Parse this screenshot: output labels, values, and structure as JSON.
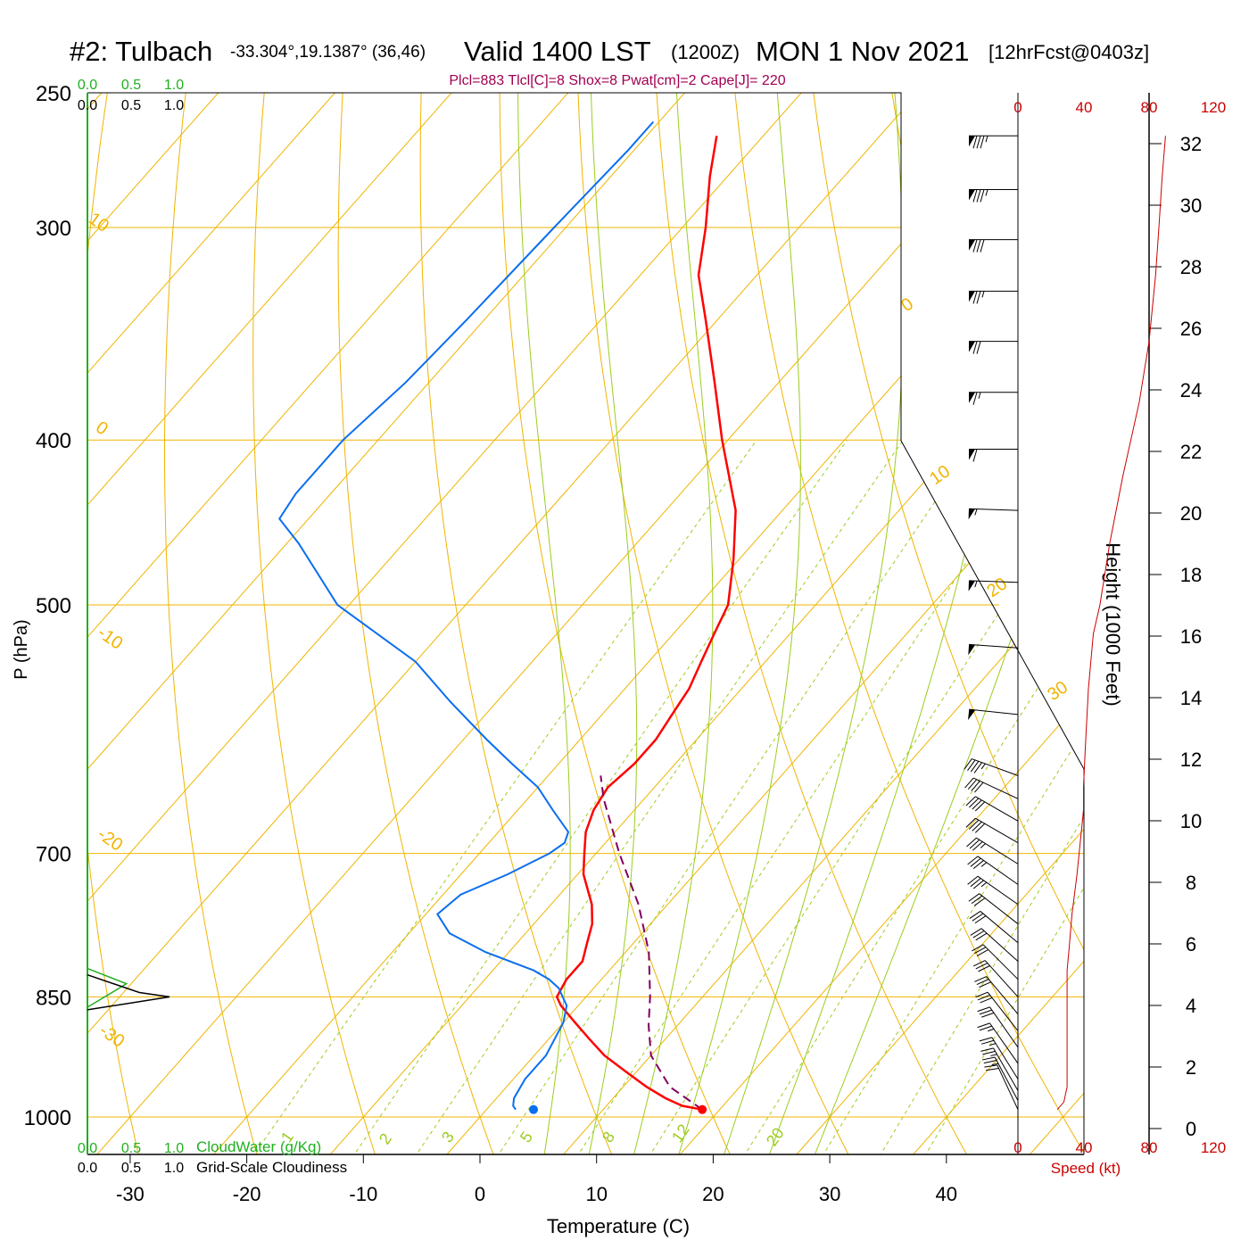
{
  "header": {
    "station": "#2: Tulbach",
    "coords": "-33.304°,19.1387° (36,46)",
    "valid": "Valid 1400 LST",
    "utc": "(1200Z)",
    "date": "MON 1 Nov 2021",
    "forecast": "[12hrFcst@0403z]",
    "params": "Plcl=883 Tlcl[C]=8 Shox=8 Pwat[cm]=2 Cape[J]= 220"
  },
  "colors": {
    "temperature": "#ff0000",
    "dewpoint": "#0a6ef0",
    "parcel": "#800060",
    "isotherm": "#f0b400",
    "dry_adiabat": "#f0b400",
    "moist_adiabat": "#9ccc1e",
    "mixing_ratio": "#9ccc1e",
    "cloud_water": "#20b020",
    "wind_speed": "#cc0000"
  },
  "chart_data": {
    "type": "line",
    "title": "Skew-T log-P sounding",
    "xlabel": "Temperature (C)",
    "ylabel": "P (hPa)",
    "y2label": "Height (1000 Feet)",
    "x_ticks": [
      "-30",
      "-20",
      "-10",
      "0",
      "10",
      "20",
      "30",
      "40"
    ],
    "pressure_ticks": [
      "250",
      "300",
      "400",
      "500",
      "700",
      "850",
      "1000"
    ],
    "height_ticks": [
      "0",
      "2",
      "4",
      "6",
      "8",
      "10",
      "12",
      "14",
      "16",
      "18",
      "20",
      "22",
      "24",
      "26",
      "28",
      "30",
      "32"
    ],
    "dry_adiabat_labels": [
      "10",
      "0",
      "-10",
      "-20",
      "-30",
      "0",
      "10",
      "20",
      "30"
    ],
    "mixing_ratio_labels": [
      "1",
      "2",
      "3",
      "5",
      "8",
      "12",
      "20"
    ],
    "cloud_scale": {
      "green_ticks": [
        "0.0",
        "0.5",
        "1.0"
      ],
      "black_ticks": [
        "0.0",
        "0.5",
        "1.0"
      ],
      "green_label": "CloudWater (g/Kg)",
      "black_label": "Grid-Scale Cloudiness"
    },
    "speed_scale": {
      "ticks": [
        "0",
        "40",
        "80",
        "120"
      ],
      "label": "Speed (kt)"
    },
    "temperature": {
      "p": [
        990,
        985,
        975,
        960,
        940,
        920,
        900,
        880,
        860,
        850,
        830,
        810,
        790,
        770,
        750,
        720,
        700,
        680,
        660,
        640,
        620,
        600,
        580,
        560,
        540,
        520,
        500,
        470,
        440,
        400,
        370,
        340,
        320,
        300,
        280,
        265
      ],
      "t": [
        18.5,
        16.5,
        14.5,
        12.0,
        9.0,
        6.0,
        3.5,
        1.0,
        -1.5,
        -2.5,
        -3.0,
        -3.0,
        -4.0,
        -5.0,
        -6.5,
        -9.5,
        -11.0,
        -12.5,
        -13.5,
        -14.0,
        -13.5,
        -13.5,
        -14.0,
        -14.5,
        -15.5,
        -16.5,
        -17.5,
        -20.5,
        -24.0,
        -30.5,
        -35.5,
        -41.0,
        -45.0,
        -48.0,
        -51.5,
        -54.0
      ]
    },
    "dewpoint": {
      "p": [
        990,
        985,
        975,
        950,
        920,
        900,
        880,
        860,
        850,
        840,
        830,
        820,
        800,
        780,
        760,
        740,
        720,
        700,
        690,
        680,
        660,
        640,
        620,
        600,
        570,
        540,
        500,
        460,
        445,
        430,
        400,
        370,
        340,
        300,
        270,
        260
      ],
      "t": [
        2.5,
        2.0,
        1.5,
        1.0,
        1.0,
        0.5,
        0.0,
        -1.0,
        -2.0,
        -3.0,
        -4.5,
        -6.5,
        -12.0,
        -16.5,
        -19.0,
        -18.5,
        -16.0,
        -14.0,
        -13.5,
        -14.0,
        -17.0,
        -20.0,
        -24.0,
        -28.0,
        -34.0,
        -40.0,
        -51.0,
        -59.0,
        -62.5,
        -63.0,
        -63.0,
        -62.0,
        -61.5,
        -61.0,
        -60.5,
        -60.5
      ]
    },
    "parcel": {
      "p": [
        990,
        960,
        920,
        883,
        850,
        800,
        750,
        700,
        650,
        630
      ],
      "t": [
        18.5,
        14.0,
        10.0,
        7.5,
        5.5,
        2.0,
        -2.5,
        -8.0,
        -13.5,
        -15.5
      ]
    },
    "surface_points": {
      "temperature": {
        "p": 990,
        "t": 18.5
      },
      "dewpoint": {
        "p": 990,
        "t": 2.5
      }
    },
    "cloud_water": {
      "p": [
        818,
        835,
        850,
        862
      ],
      "value": [
        0.0,
        0.45,
        0.2,
        0.0
      ]
    },
    "cloudiness": {
      "p": [
        825,
        845,
        850,
        865
      ],
      "value": [
        0.0,
        0.6,
        0.95,
        0.0
      ]
    },
    "wind_speed_profile": {
      "p": [
        990,
        980,
        960,
        900,
        850,
        820,
        800,
        760,
        720,
        690,
        660,
        640,
        610,
        560,
        520,
        500,
        460,
        420,
        380,
        350,
        320,
        300,
        280,
        265
      ],
      "kt": [
        24,
        28,
        30,
        30,
        30,
        30,
        31,
        33,
        36,
        38,
        40,
        40,
        41,
        43,
        46,
        50,
        56,
        64,
        74,
        80,
        84,
        86,
        88,
        90
      ]
    },
    "wind_barbs": [
      {
        "p": 265,
        "speed_kt": 85,
        "dir_deg": 270
      },
      {
        "p": 285,
        "speed_kt": 85,
        "dir_deg": 270
      },
      {
        "p": 305,
        "speed_kt": 80,
        "dir_deg": 270
      },
      {
        "p": 327,
        "speed_kt": 75,
        "dir_deg": 270
      },
      {
        "p": 350,
        "speed_kt": 70,
        "dir_deg": 270
      },
      {
        "p": 375,
        "speed_kt": 65,
        "dir_deg": 270
      },
      {
        "p": 405,
        "speed_kt": 60,
        "dir_deg": 270
      },
      {
        "p": 440,
        "speed_kt": 55,
        "dir_deg": 272
      },
      {
        "p": 485,
        "speed_kt": 55,
        "dir_deg": 272
      },
      {
        "p": 530,
        "speed_kt": 50,
        "dir_deg": 274
      },
      {
        "p": 580,
        "speed_kt": 50,
        "dir_deg": 276
      },
      {
        "p": 630,
        "speed_kt": 45,
        "dir_deg": 290
      },
      {
        "p": 650,
        "speed_kt": 40,
        "dir_deg": 295
      },
      {
        "p": 670,
        "speed_kt": 40,
        "dir_deg": 300
      },
      {
        "p": 690,
        "speed_kt": 40,
        "dir_deg": 300
      },
      {
        "p": 710,
        "speed_kt": 35,
        "dir_deg": 302
      },
      {
        "p": 730,
        "speed_kt": 35,
        "dir_deg": 305
      },
      {
        "p": 750,
        "speed_kt": 35,
        "dir_deg": 305
      },
      {
        "p": 770,
        "speed_kt": 30,
        "dir_deg": 308
      },
      {
        "p": 790,
        "speed_kt": 30,
        "dir_deg": 310
      },
      {
        "p": 810,
        "speed_kt": 30,
        "dir_deg": 312
      },
      {
        "p": 830,
        "speed_kt": 30,
        "dir_deg": 315
      },
      {
        "p": 850,
        "speed_kt": 30,
        "dir_deg": 318
      },
      {
        "p": 870,
        "speed_kt": 30,
        "dir_deg": 320
      },
      {
        "p": 890,
        "speed_kt": 30,
        "dir_deg": 322
      },
      {
        "p": 910,
        "speed_kt": 30,
        "dir_deg": 325
      },
      {
        "p": 930,
        "speed_kt": 25,
        "dir_deg": 325
      },
      {
        "p": 950,
        "speed_kt": 25,
        "dir_deg": 328
      },
      {
        "p": 965,
        "speed_kt": 25,
        "dir_deg": 330
      },
      {
        "p": 978,
        "speed_kt": 25,
        "dir_deg": 332
      },
      {
        "p": 990,
        "speed_kt": 20,
        "dir_deg": 335
      }
    ]
  }
}
